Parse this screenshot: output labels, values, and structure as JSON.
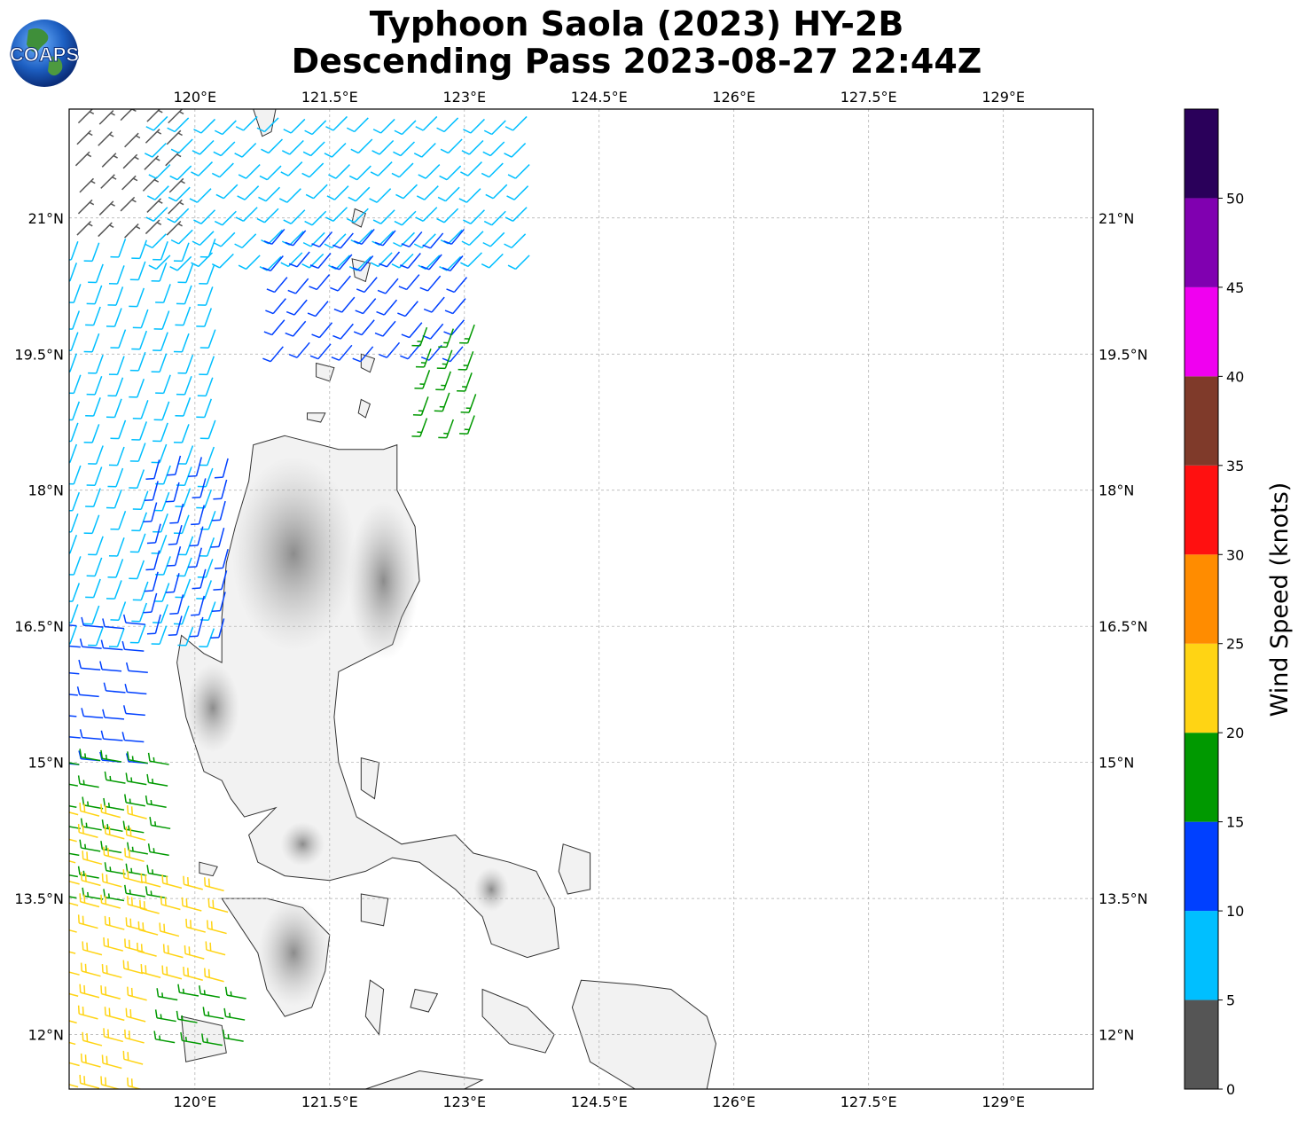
{
  "title": {
    "line1": "Typhoon Saola (2023) HY-2B",
    "line2": "Descending Pass 2023-08-27 22:44Z"
  },
  "logo": {
    "text": "COAPS"
  },
  "map": {
    "lon_range": [
      118.6,
      130.0
    ],
    "lat_range": [
      11.4,
      22.2
    ],
    "lon_ticks": [
      120,
      121.5,
      123,
      124.5,
      126,
      127.5,
      129
    ],
    "lon_labels": [
      "120°E",
      "121.5°E",
      "123°E",
      "124.5°E",
      "126°E",
      "127.5°E",
      "129°E"
    ],
    "lat_ticks": [
      21,
      19.5,
      18,
      16.5,
      15,
      13.5,
      12
    ],
    "lat_labels": [
      "21°N",
      "19.5°N",
      "18°N",
      "16.5°N",
      "15°N",
      "13.5°N",
      "12°N"
    ],
    "gridlines": true,
    "land_shading": "grayscale elevation"
  },
  "colorbar": {
    "title": "Wind Speed (knots)",
    "bins": [
      {
        "from": 0,
        "to": 5,
        "color": "#555555"
      },
      {
        "from": 5,
        "to": 10,
        "color": "#00bfff"
      },
      {
        "from": 10,
        "to": 15,
        "color": "#0040ff"
      },
      {
        "from": 15,
        "to": 20,
        "color": "#009900"
      },
      {
        "from": 20,
        "to": 25,
        "color": "#ffd414"
      },
      {
        "from": 25,
        "to": 30,
        "color": "#ff8c00"
      },
      {
        "from": 30,
        "to": 35,
        "color": "#ff1010"
      },
      {
        "from": 35,
        "to": 40,
        "color": "#7f3a2a"
      },
      {
        "from": 40,
        "to": 45,
        "color": "#f000f0"
      },
      {
        "from": 45,
        "to": 50,
        "color": "#8000b0"
      },
      {
        "from": 50,
        "to": 55,
        "color": "#2a005a"
      }
    ],
    "tick_labels": [
      "0",
      "5",
      "10",
      "15",
      "20",
      "25",
      "30",
      "35",
      "40",
      "45",
      "50"
    ]
  },
  "wind_regions": [
    {
      "lat": [
        20.8,
        22.2
      ],
      "lon": [
        118.7,
        119.9
      ],
      "speed": 4,
      "dir": 45
    },
    {
      "lat": [
        20.6,
        22.1
      ],
      "lon": [
        119.7,
        123.8
      ],
      "speed": 8,
      "dir": 225
    },
    {
      "lat": [
        19.6,
        21.0
      ],
      "lon": [
        121.0,
        123.2
      ],
      "speed": 12,
      "dir": 220
    },
    {
      "lat": [
        18.8,
        19.9
      ],
      "lon": [
        122.6,
        123.1
      ],
      "speed": 17,
      "dir": 200
    },
    {
      "lat": [
        16.5,
        20.8
      ],
      "lon": [
        118.7,
        120.2
      ],
      "speed": 8,
      "dir": 200
    },
    {
      "lat": [
        16.6,
        18.4
      ],
      "lon": [
        119.6,
        120.4
      ],
      "speed": 12,
      "dir": 195
    },
    {
      "lat": [
        15.0,
        16.5
      ],
      "lon": [
        118.7,
        119.6
      ],
      "speed": 12,
      "dir": 275
    },
    {
      "lat": [
        13.5,
        15.0
      ],
      "lon": [
        118.7,
        119.9
      ],
      "speed": 17,
      "dir": 280
    },
    {
      "lat": [
        11.4,
        14.4
      ],
      "lon": [
        118.7,
        119.6
      ],
      "speed": 22,
      "dir": 285
    },
    {
      "lat": [
        12.6,
        13.8
      ],
      "lon": [
        119.6,
        120.5
      ],
      "speed": 22,
      "dir": 285
    },
    {
      "lat": [
        11.9,
        12.6
      ],
      "lon": [
        119.8,
        120.6
      ],
      "speed": 17,
      "dir": 280
    }
  ]
}
